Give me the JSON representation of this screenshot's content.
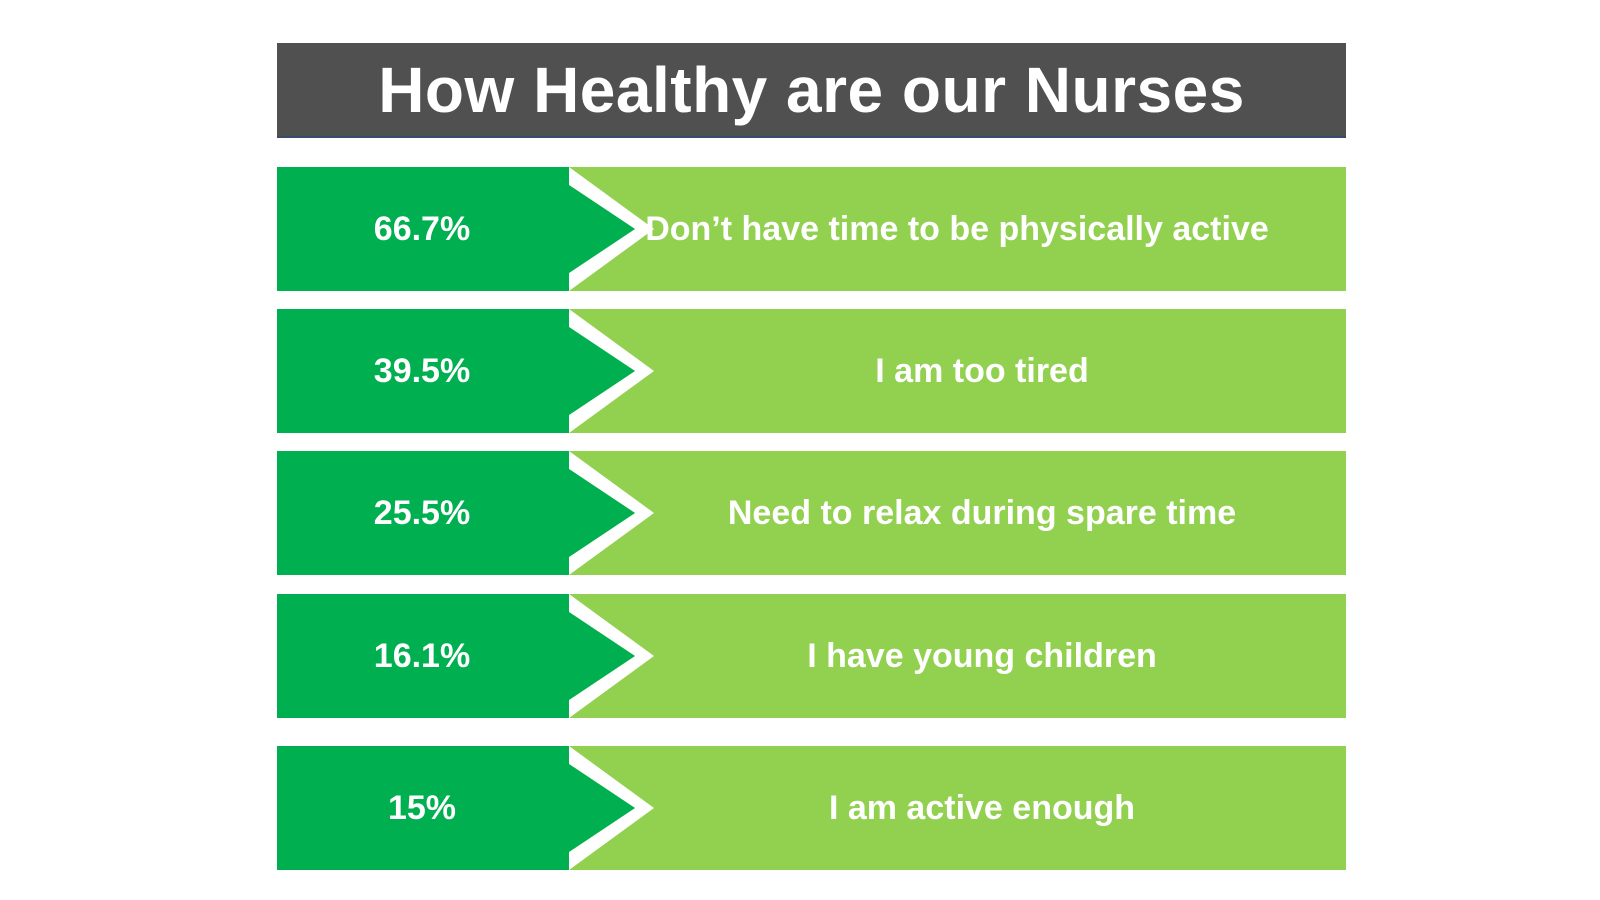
{
  "title": "How Healthy are our Nurses",
  "colors": {
    "title_bg": "#505050",
    "stat_green": "#00b050",
    "reason_green": "#92d050",
    "text": "#ffffff"
  },
  "rows": [
    {
      "stat": "66.7%",
      "reason": "Don’t have time to be physically active"
    },
    {
      "stat": "39.5%",
      "reason": "I am too tired"
    },
    {
      "stat": "25.5%",
      "reason": "Need to relax during spare time"
    },
    {
      "stat": "16.1%",
      "reason": "I have young children"
    },
    {
      "stat": "15%",
      "reason": "I am active enough"
    }
  ]
}
